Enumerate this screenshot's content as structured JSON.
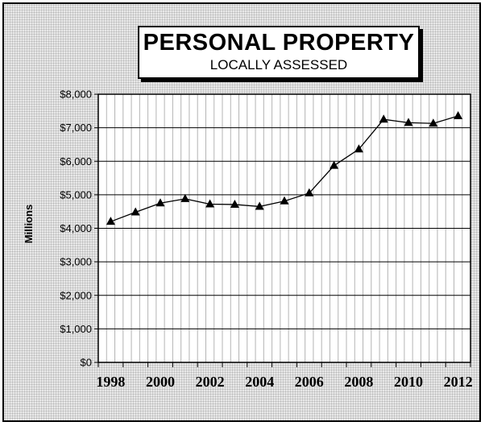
{
  "title": "PERSONAL PROPERTY",
  "subtitle": "LOCALLY ASSESSED",
  "chart_data": {
    "type": "line",
    "title": "PERSONAL PROPERTY",
    "subtitle": "LOCALLY ASSESSED",
    "xlabel": "",
    "ylabel": "Millions",
    "x": [
      1998,
      1999,
      2000,
      2001,
      2002,
      2003,
      2004,
      2005,
      2006,
      2007,
      2008,
      2009,
      2010,
      2011,
      2012
    ],
    "x_tick_labels": [
      "1998",
      "2000",
      "2002",
      "2004",
      "2006",
      "2008",
      "2010",
      "2012"
    ],
    "y_tick_labels": [
      "$0",
      "$1,000",
      "$2,000",
      "$3,000",
      "$4,000",
      "$5,000",
      "$6,000",
      "$7,000",
      "$8,000"
    ],
    "ylim": [
      0,
      8000
    ],
    "grid": true,
    "series": [
      {
        "name": "",
        "marker": "triangle",
        "color": "#000000",
        "values": [
          4200,
          4480,
          4750,
          4880,
          4720,
          4710,
          4650,
          4810,
          5050,
          5870,
          6360,
          7250,
          7150,
          7130,
          7350
        ]
      }
    ]
  }
}
